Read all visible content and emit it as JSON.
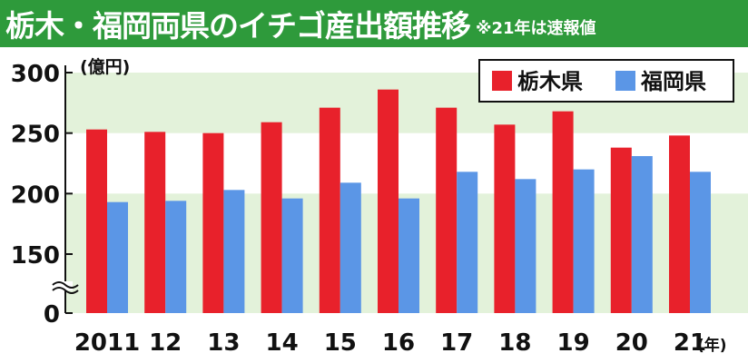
{
  "header": {
    "title": "栃木・福岡両県のイチゴ産出額推移",
    "subtitle": "※21年は速報値"
  },
  "colors": {
    "tochigi": "#e8212b",
    "fukuoka": "#5b96e6",
    "title_bg": "#2e9a3b",
    "band": "#e3f2da"
  },
  "chart_data": {
    "type": "bar",
    "title": "栃木・福岡両県のイチゴ産出額推移",
    "subtitle": "※21年は速報値",
    "ylabel": "(億円)",
    "xlabel": "(年)",
    "ylim": [
      0,
      300
    ],
    "axis_break": true,
    "y_break_from": 150,
    "y_ticks": [
      0,
      150,
      200,
      250,
      300
    ],
    "categories": [
      "2011",
      "12",
      "13",
      "14",
      "15",
      "16",
      "17",
      "18",
      "19",
      "20",
      "21"
    ],
    "series": [
      {
        "name": "栃木県",
        "color": "#e8212b",
        "values": [
          253,
          251,
          250,
          259,
          271,
          286,
          271,
          257,
          268,
          238,
          248
        ]
      },
      {
        "name": "福岡県",
        "color": "#5b96e6",
        "values": [
          193,
          194,
          203,
          196,
          209,
          196,
          218,
          212,
          220,
          231,
          218
        ]
      }
    ],
    "legend_position": "top-right",
    "grid": false
  }
}
